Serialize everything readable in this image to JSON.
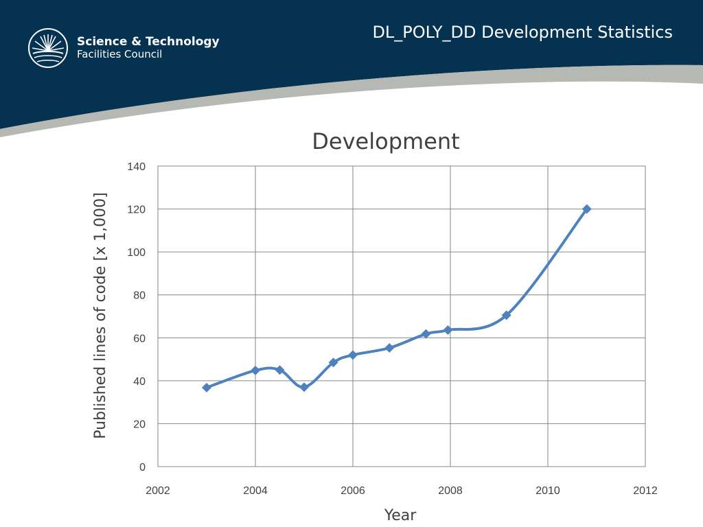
{
  "slide": {
    "title": "DL_POLY_DD Development Statistics",
    "colors": {
      "header_bg": "#063252",
      "swoosh": "#b5b8b3",
      "line": "#4f81bd"
    }
  },
  "logo": {
    "line1": "Science & Technology",
    "line2": "Facilities Council"
  },
  "chart_data": {
    "type": "line",
    "title": "Development",
    "xlabel": "Year",
    "ylabel": "Published lines of code [x 1,000]",
    "xlim": [
      2002,
      2012
    ],
    "ylim": [
      0,
      140
    ],
    "xticks": [
      2002,
      2004,
      2006,
      2008,
      2010,
      2012
    ],
    "yticks": [
      0,
      20,
      40,
      60,
      80,
      100,
      120,
      140
    ],
    "grid": true,
    "legend": "none",
    "smooth": true,
    "marker": "diamond",
    "series": [
      {
        "x": [
          2003.0,
          2004.0,
          2004.5,
          2005.0,
          2005.6,
          2006.0,
          2006.75,
          2007.5,
          2007.95,
          2009.15,
          2010.8
        ],
        "y": [
          36.8,
          44.8,
          45.0,
          37.0,
          48.5,
          52.0,
          55.3,
          61.8,
          63.6,
          70.5,
          120.0
        ]
      }
    ]
  }
}
